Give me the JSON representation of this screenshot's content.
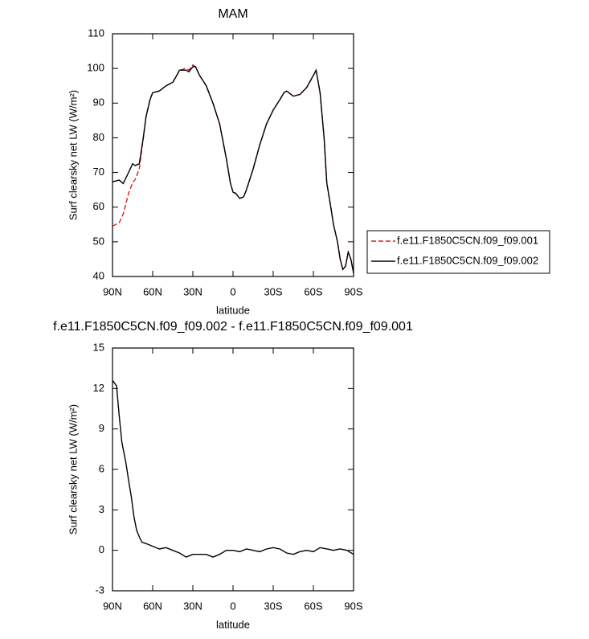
{
  "chart_data": [
    {
      "type": "line",
      "title": "MAM",
      "xlabel": "latitude",
      "ylabel": "Surf clearsky net LW (W/m²)",
      "xlim": [
        90,
        -90
      ],
      "xticks": [
        {
          "value": 90,
          "label": "90N"
        },
        {
          "value": 60,
          "label": "60N"
        },
        {
          "value": 30,
          "label": "30N"
        },
        0,
        {
          "value": -30,
          "label": "30S"
        },
        {
          "value": -60,
          "label": "60S"
        },
        {
          "value": -90,
          "label": "90S"
        }
      ],
      "ylim": [
        40,
        110
      ],
      "yticks": [
        40,
        50,
        60,
        70,
        80,
        90,
        100,
        110
      ],
      "legend": "right",
      "x": [
        90,
        85,
        82,
        78,
        75,
        73,
        70,
        67,
        65,
        62,
        60,
        55,
        50,
        45,
        42,
        40,
        35,
        33,
        30,
        28,
        25,
        20,
        15,
        10,
        5,
        2,
        0,
        -2,
        -5,
        -8,
        -10,
        -15,
        -20,
        -25,
        -30,
        -35,
        -38,
        -40,
        -45,
        -50,
        -55,
        -60,
        -62,
        -65,
        -68,
        -70,
        -73,
        -75,
        -78,
        -80,
        -82,
        -84,
        -86,
        -88,
        -90
      ],
      "series": [
        {
          "name": "f.e11.F1850C5CN.f09_f09.001",
          "color": "#e41a1c",
          "dashed": true,
          "values": [
            54.5,
            55.5,
            58,
            64,
            67,
            68,
            71,
            80,
            86,
            91,
            93,
            93.5,
            95,
            96,
            98,
            99.5,
            100,
            99.5,
            101,
            100.5,
            98,
            95,
            90,
            84,
            74,
            67,
            64.3,
            64,
            62.5,
            63,
            65,
            71,
            78,
            84,
            88,
            91,
            93,
            93.5,
            92,
            92.5,
            94.5,
            98,
            99.5,
            93,
            80,
            67,
            60,
            55,
            50,
            45,
            42,
            43,
            47,
            45,
            41
          ]
        },
        {
          "name": "f.e11.F1850C5CN.f09_f09.002",
          "color": "#000000",
          "dashed": false,
          "values": [
            67.3,
            67.8,
            66.8,
            70,
            72.5,
            72,
            72.5,
            80,
            86,
            91,
            93,
            93.5,
            95,
            96,
            98,
            99.5,
            99.5,
            99,
            100.5,
            100.5,
            98,
            95,
            90,
            84,
            74,
            67,
            64.3,
            64,
            62.5,
            63,
            65,
            71,
            78,
            84,
            88,
            91,
            93,
            93.5,
            92,
            92.5,
            94.5,
            98,
            99.5,
            93,
            80,
            67,
            60,
            55,
            50,
            45,
            42,
            43,
            47,
            45,
            41
          ]
        }
      ]
    },
    {
      "type": "line",
      "title": "f.e11.F1850C5CN.f09_f09.002 - f.e11.F1850C5CN.f09_f09.001",
      "xlabel": "latitude",
      "ylabel": "Surf clearsky net LW (W/m²)",
      "xlim": [
        90,
        -90
      ],
      "xticks": [
        {
          "value": 90,
          "label": "90N"
        },
        {
          "value": 60,
          "label": "60N"
        },
        {
          "value": 30,
          "label": "30N"
        },
        0,
        {
          "value": -30,
          "label": "30S"
        },
        {
          "value": -60,
          "label": "60S"
        },
        {
          "value": -90,
          "label": "90S"
        }
      ],
      "ylim": [
        -3,
        15
      ],
      "yticks": [
        -3,
        0,
        3,
        6,
        9,
        12,
        15
      ],
      "x": [
        90,
        87,
        85,
        83,
        80,
        78,
        76,
        74,
        72,
        70,
        68,
        65,
        60,
        55,
        50,
        45,
        40,
        35,
        30,
        25,
        20,
        15,
        10,
        5,
        0,
        -5,
        -10,
        -15,
        -20,
        -25,
        -30,
        -35,
        -40,
        -45,
        -50,
        -55,
        -60,
        -65,
        -70,
        -75,
        -80,
        -85,
        -90
      ],
      "series": [
        {
          "color": "#000000",
          "dashed": false,
          "values": [
            12.6,
            12.2,
            10,
            8,
            6.5,
            5.2,
            4,
            2.5,
            1.5,
            1,
            0.6,
            0.5,
            0.3,
            0.1,
            0.2,
            0,
            -0.2,
            -0.5,
            -0.3,
            -0.3,
            -0.3,
            -0.5,
            -0.3,
            0,
            0,
            -0.1,
            0.1,
            0,
            -0.1,
            0.1,
            0.2,
            0.1,
            -0.2,
            -0.3,
            -0.1,
            0,
            -0.1,
            0.2,
            0.1,
            0,
            0.1,
            0,
            -0.3
          ]
        }
      ]
    }
  ]
}
